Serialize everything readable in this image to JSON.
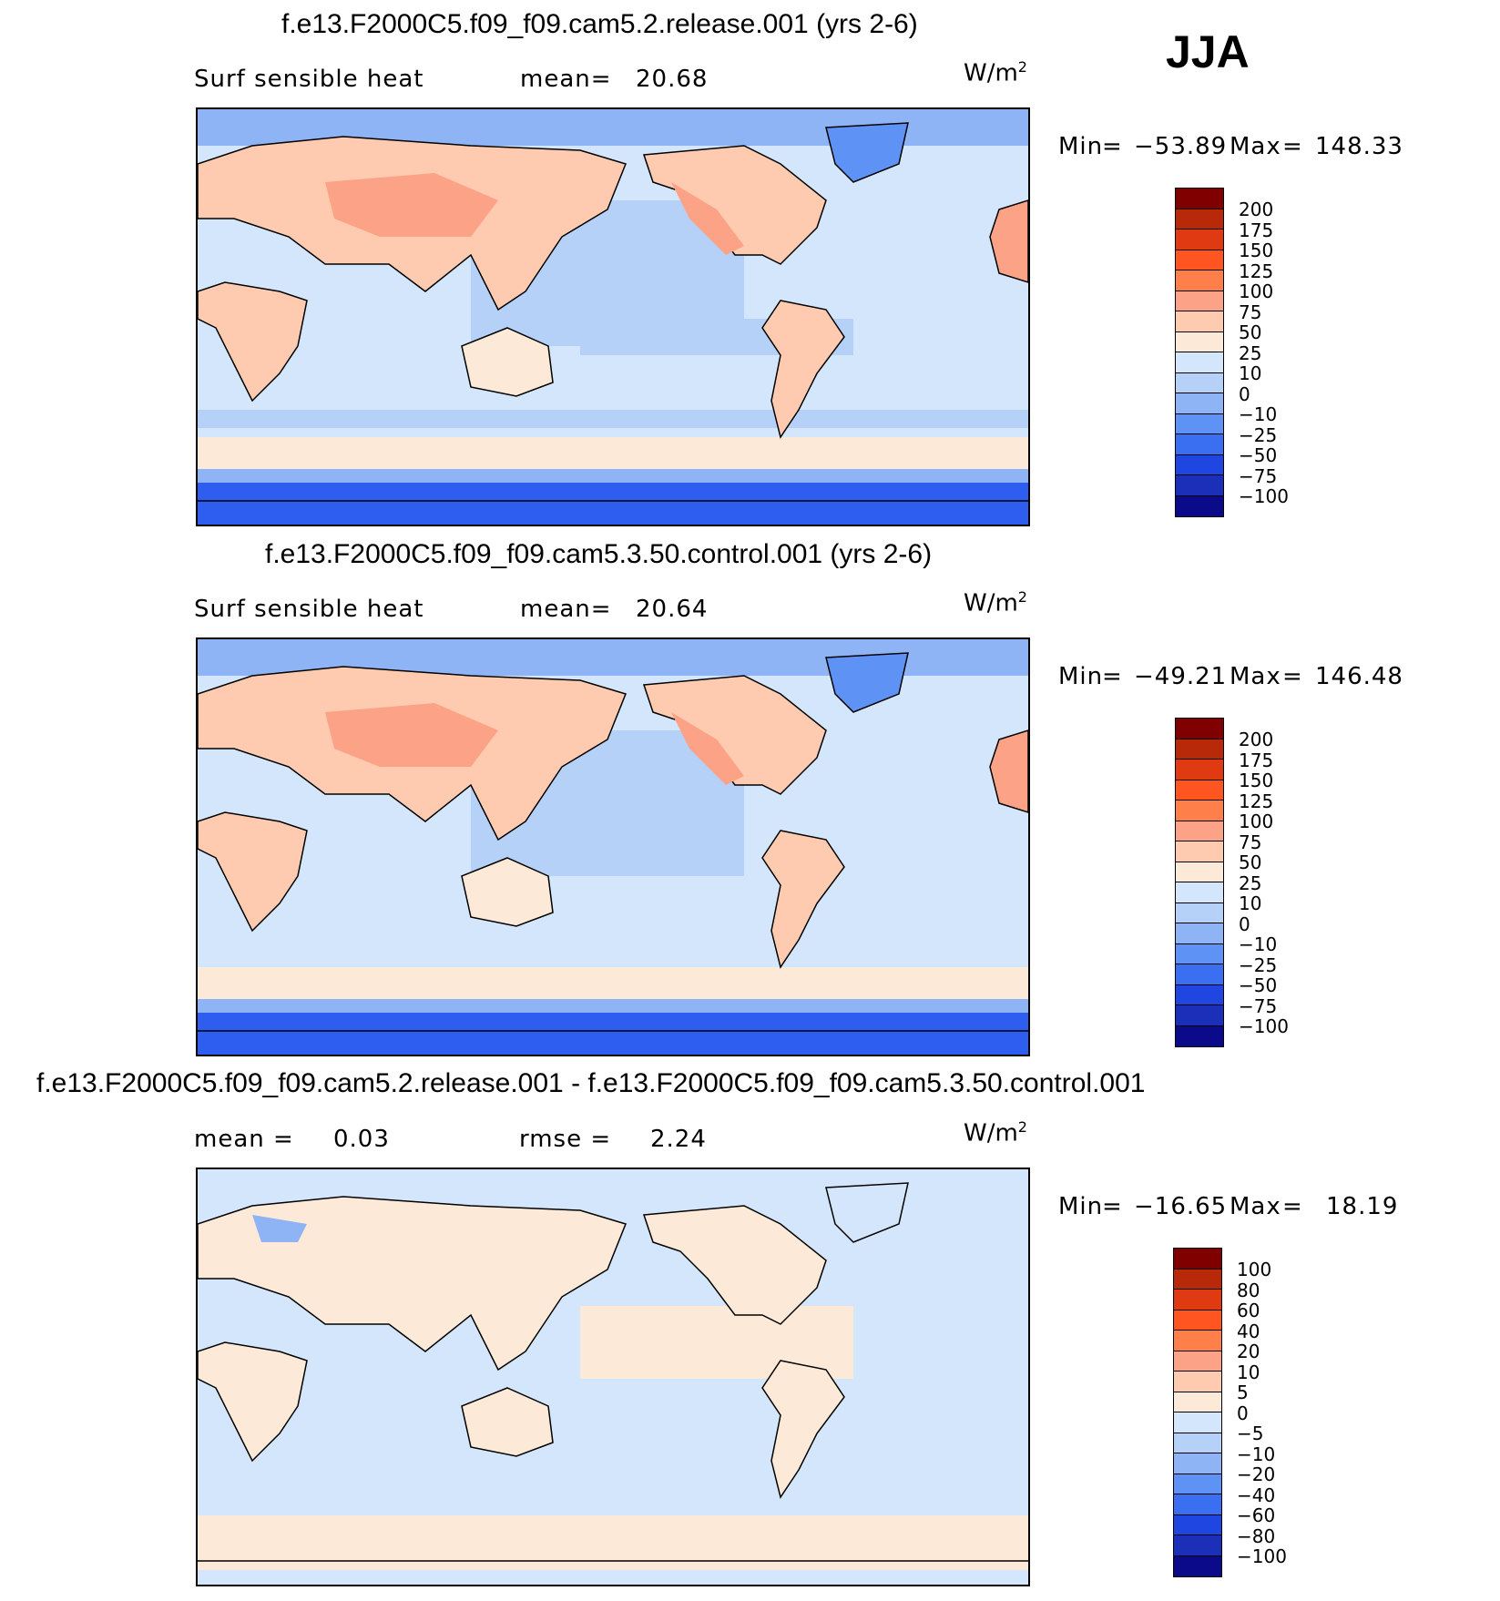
{
  "season": "JJA",
  "units_base": "W/m",
  "units_exp": "2",
  "panels": [
    {
      "title": "f.e13.F2000C5.f09_f09.cam5.2.release.001 (yrs 2-6)",
      "variable": "Surf sensible heat",
      "stat1_label": "mean=",
      "stat1_value": "20.68",
      "stat2_label": "",
      "stat2_value": "",
      "min_label": "Min",
      "min_value": "−53.89",
      "max_label": "Max",
      "max_value": "148.33",
      "colorbar_levels": [
        "200",
        "175",
        "150",
        "125",
        "100",
        "75",
        "50",
        "25",
        "10",
        "0",
        "−10",
        "−25",
        "−50",
        "−75",
        "−100"
      ]
    },
    {
      "title": "f.e13.F2000C5.f09_f09.cam5.3.50.control.001 (yrs 2-6)",
      "variable": "Surf sensible heat",
      "stat1_label": "mean=",
      "stat1_value": "20.64",
      "stat2_label": "",
      "stat2_value": "",
      "min_label": "Min",
      "min_value": "−49.21",
      "max_label": "Max",
      "max_value": "146.48",
      "colorbar_levels": [
        "200",
        "175",
        "150",
        "125",
        "100",
        "75",
        "50",
        "25",
        "10",
        "0",
        "−10",
        "−25",
        "−50",
        "−75",
        "−100"
      ]
    },
    {
      "title": "f.e13.F2000C5.f09_f09.cam5.2.release.001 - f.e13.F2000C5.f09_f09.cam5.3.50.control.001",
      "variable": "",
      "stat1_label": "mean =",
      "stat1_value": "0.03",
      "stat2_label": "rmse =",
      "stat2_value": "2.24",
      "min_label": "Min",
      "min_value": "−16.65",
      "max_label": "Max",
      "max_value": "18.19",
      "colorbar_levels": [
        "100",
        "80",
        "60",
        "40",
        "20",
        "10",
        "5",
        "0",
        "−5",
        "−10",
        "−20",
        "−40",
        "−60",
        "−80",
        "−100"
      ]
    }
  ],
  "colors": {
    "scale": [
      "#800000",
      "#b8290a",
      "#e03a12",
      "#ff5520",
      "#ff7f4a",
      "#fca286",
      "#fecbb0",
      "#fde9d8",
      "#d4e6fb",
      "#b5d1f8",
      "#8fb4f5",
      "#5f92f5",
      "#3a6ff2",
      "#1f46e0",
      "#1c2fb8",
      "#0a0a8a"
    ],
    "ocean_light": "#d4e6fb",
    "ocean_mid": "#b5d1f8",
    "ice": "#2e5ef0"
  }
}
